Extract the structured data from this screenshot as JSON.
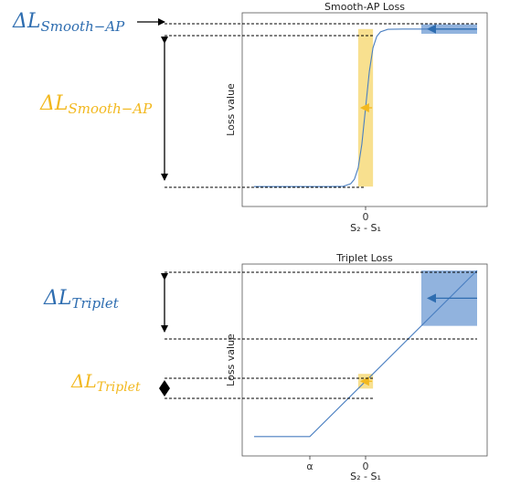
{
  "annotations": {
    "top_blue_label": "ΔL",
    "top_blue_sub": "Smooth−AP",
    "top_gold_label": "ΔL",
    "top_gold_sub": "Smooth−AP",
    "bottom_blue_label": "ΔL",
    "bottom_blue_sub": "Triplet",
    "bottom_gold_label": "ΔL",
    "bottom_gold_sub": "Triplet",
    "blue_color": "#2e6db0",
    "gold_color": "#f2b81e"
  },
  "chart_data": [
    {
      "type": "line",
      "title": "Smooth-AP Loss",
      "xlabel": "S₂ - S₁",
      "ylabel": "Loss value",
      "x_ticks": [
        "0"
      ],
      "xlim": [
        -3.0,
        3.0
      ],
      "ylim": [
        -0.08,
        1.08
      ],
      "grid": false,
      "curve": "sigmoid",
      "series": [
        {
          "x": [
            -3.0,
            -1.0,
            -0.6,
            -0.4,
            -0.3,
            -0.2,
            -0.1,
            0.0,
            0.1,
            0.2,
            0.3,
            0.4,
            0.6,
            1.0,
            3.0
          ],
          "values": [
            0.0,
            0.0,
            0.002,
            0.018,
            0.047,
            0.119,
            0.269,
            0.5,
            0.731,
            0.881,
            0.953,
            0.982,
            0.998,
            1.0,
            1.0
          ]
        }
      ],
      "highlights": [
        {
          "kind": "gold_band",
          "x_range": [
            -0.2,
            0.2
          ],
          "y_range": [
            0.0,
            1.0
          ]
        },
        {
          "kind": "blue_box",
          "x_range": [
            1.5,
            3.0
          ],
          "y_range": [
            0.97,
            1.03
          ]
        }
      ],
      "arrow_colors": {
        "gold": "#f2b81e",
        "blue": "#2e6db0"
      }
    },
    {
      "type": "line",
      "title": "Triplet Loss",
      "xlabel": "S₂ - S₁",
      "ylabel": "Loss value",
      "x_ticks": [
        "α",
        "0"
      ],
      "x_tick_values": [
        -1.5,
        0.0
      ],
      "xlim": [
        -3.0,
        3.0
      ],
      "ylim": [
        -0.4,
        4.6
      ],
      "grid": false,
      "series": [
        {
          "x": [
            -3.0,
            -1.5,
            3.0
          ],
          "values": [
            0.0,
            0.0,
            4.5
          ]
        }
      ],
      "highlights": [
        {
          "kind": "gold_box",
          "x_range": [
            -0.2,
            0.2
          ],
          "y_range": [
            1.3,
            1.7
          ]
        },
        {
          "kind": "blue_box",
          "x_range": [
            1.5,
            3.0
          ],
          "y_range": [
            3.0,
            4.5
          ]
        }
      ],
      "arrow_colors": {
        "gold": "#f2b81e",
        "blue": "#2e6db0"
      }
    }
  ]
}
